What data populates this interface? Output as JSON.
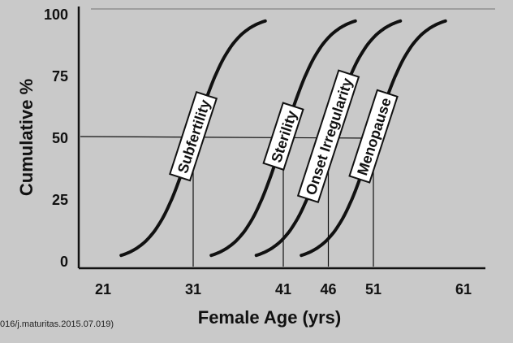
{
  "chart_data": {
    "type": "line",
    "xlabel": "Female Age (yrs)",
    "ylabel": "Cumulative %",
    "x_ticks": [
      21,
      31,
      41,
      46,
      51,
      61
    ],
    "y_ticks": [
      0,
      25,
      50,
      75,
      100
    ],
    "xlim": [
      16,
      64
    ],
    "ylim": [
      0,
      100
    ],
    "reference_line_y": 50,
    "grid": false,
    "legend": "none",
    "series": [
      {
        "name": "Subfertility",
        "midpoint_age": 31,
        "x": [
          23,
          25,
          27,
          29,
          31,
          33,
          35,
          37,
          39
        ],
        "y": [
          0,
          2,
          9,
          26,
          50,
          74,
          91,
          98,
          100
        ]
      },
      {
        "name": "Sterility",
        "midpoint_age": 41,
        "x": [
          33,
          35,
          37,
          39,
          41,
          43,
          45,
          47,
          49
        ],
        "y": [
          0,
          2,
          9,
          26,
          50,
          74,
          91,
          98,
          100
        ]
      },
      {
        "name": "Onset Irregularity",
        "midpoint_age": 46,
        "x": [
          38,
          40,
          42,
          44,
          46,
          48,
          50,
          52,
          54
        ],
        "y": [
          0,
          2,
          9,
          26,
          50,
          74,
          91,
          98,
          100
        ]
      },
      {
        "name": "Menopause",
        "midpoint_age": 51,
        "x": [
          43,
          45,
          47,
          49,
          51,
          53,
          55,
          57,
          59
        ],
        "y": [
          0,
          2,
          9,
          26,
          50,
          74,
          91,
          98,
          100
        ]
      }
    ],
    "citation": "016/j.maturitas.2015.07.019)"
  }
}
